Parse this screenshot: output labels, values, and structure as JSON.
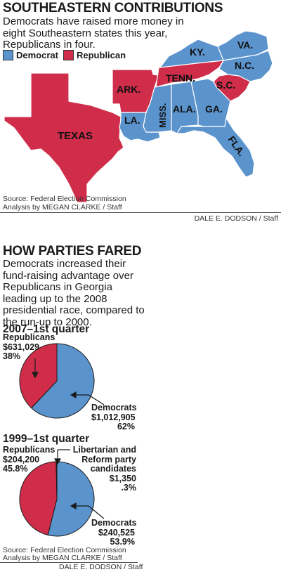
{
  "map_section": {
    "title": "SOUTHEASTERN CONTRIBUTIONS",
    "intro": "Democrats have raised more money in eight Southeastern states this year, Republicans in four.",
    "legend": [
      {
        "label": "Democrat",
        "color": "#5b93cd"
      },
      {
        "label": "Republican",
        "color": "#cf2d4a"
      }
    ],
    "states": [
      {
        "label": "KY.",
        "party": "Democrat"
      },
      {
        "label": "VA.",
        "party": "Democrat"
      },
      {
        "label": "N.C.",
        "party": "Democrat"
      },
      {
        "label": "TENN.",
        "party": "Republican"
      },
      {
        "label": "ARK.",
        "party": "Republican"
      },
      {
        "label": "S.C.",
        "party": "Republican"
      },
      {
        "label": "MISS.",
        "party": "Democrat"
      },
      {
        "label": "ALA.",
        "party": "Democrat"
      },
      {
        "label": "GA.",
        "party": "Democrat"
      },
      {
        "label": "LA.",
        "party": "Democrat"
      },
      {
        "label": "TEXAS",
        "party": "Republican"
      },
      {
        "label": "FLA.",
        "party": "Democrat"
      }
    ],
    "source_line1": "Source: Federal Election Commission",
    "source_line2": "Analysis by MEGAN CLARKE / Staff",
    "credit": "DALE E. DODSON / Staff"
  },
  "pie_section": {
    "title": "HOW PARTIES FARED",
    "intro": "Democrats increased their fund-raising advantage over Republicans in Georgia leading up to the 2008 presidential race, compared to the run-up to 2000.",
    "source_line1": "Source: Federal Election Commission",
    "source_line2": "Analysis by MEGAN CLARKE / Staff",
    "credit": "DALE E. DODSON / Staff"
  },
  "colors": {
    "democrat": "#5b93cd",
    "republican": "#cf2d4a",
    "other": "#f0d9c0"
  },
  "chart_data": [
    {
      "type": "pie",
      "title": "2007–1st quarter",
      "slices": [
        {
          "party": "Democrats",
          "amount": "$1,012,905",
          "percent_label": "62%",
          "value": 62,
          "color": "#5b93cd"
        },
        {
          "party": "Republicans",
          "amount": "$631,029",
          "percent_label": "38%",
          "value": 38,
          "color": "#cf2d4a"
        }
      ]
    },
    {
      "type": "pie",
      "title": "1999–1st quarter",
      "slices": [
        {
          "party": "Democrats",
          "amount": "$240,525",
          "percent_label": "53.9%",
          "value": 53.9,
          "color": "#5b93cd"
        },
        {
          "party": "Republicans",
          "amount": "$204,200",
          "percent_label": "45.8%",
          "value": 45.8,
          "color": "#cf2d4a"
        },
        {
          "party": "Libertarian and Reform party candidates",
          "amount": "$1,350",
          "percent_label": ".3%",
          "value": 0.3,
          "color": "#f0d9c0"
        }
      ]
    }
  ]
}
